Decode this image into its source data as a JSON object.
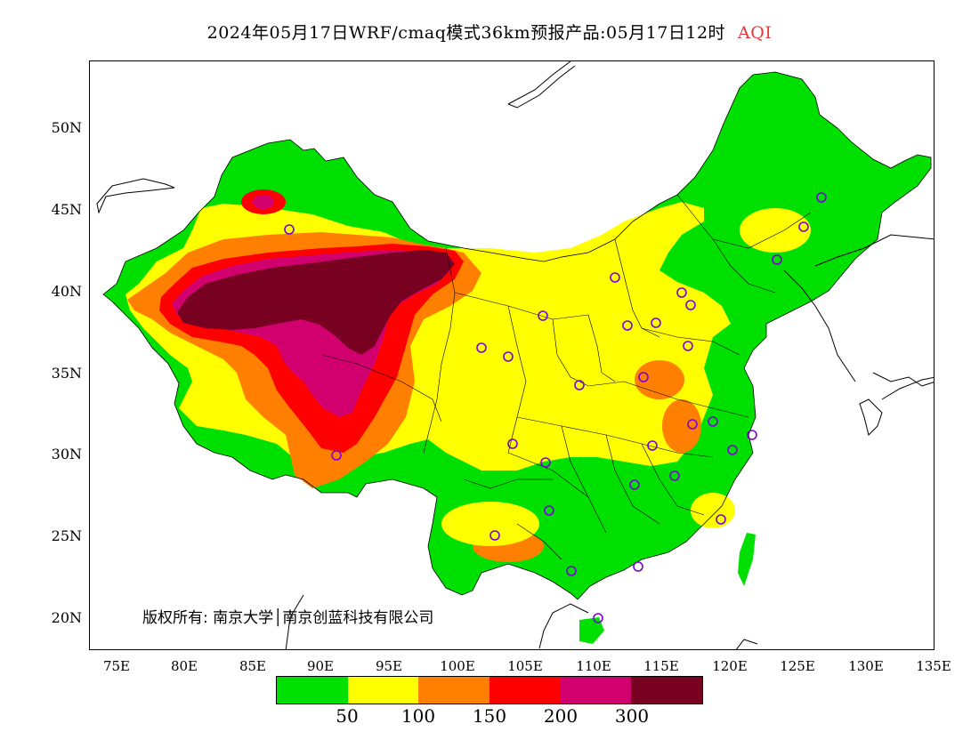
{
  "title": {
    "text": "2024年05月17日WRF/cmaq模式36km预报产品:05月17日12时",
    "variable": "AQI",
    "variable_color": "#e8383d"
  },
  "map": {
    "y_ticks": [
      "50N",
      "45N",
      "40N",
      "35N",
      "30N",
      "25N",
      "20N"
    ],
    "x_ticks": [
      "75E",
      "80E",
      "85E",
      "90E",
      "95E",
      "100E",
      "105E",
      "110E",
      "115E",
      "120E",
      "125E",
      "130E",
      "135E"
    ],
    "copyright": "版权所有: 南京大学│南京创蓝科技有限公司"
  },
  "legend": {
    "colors": [
      "#00e000",
      "#ffff00",
      "#ff8000",
      "#ff0000",
      "#d2006e",
      "#780021"
    ],
    "labels": [
      "50",
      "100",
      "150",
      "200",
      "300"
    ]
  }
}
